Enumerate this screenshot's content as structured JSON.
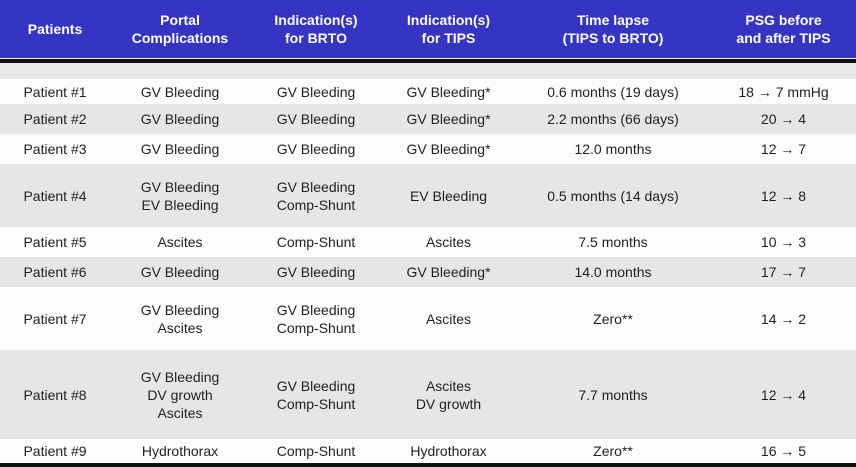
{
  "table": {
    "title": "BRTO/TIPS patient outcomes table",
    "headers": [
      "Patients",
      "Portal\nComplications",
      "Indication(s)\nfor BRTO",
      "Indication(s)\nfor TIPS",
      "Time lapse\n(TIPS to BRTO)",
      "PSG before\nand after TIPS"
    ],
    "rows": [
      {
        "patient": "Patient #1",
        "portal": "GV Bleeding",
        "brto": "GV Bleeding",
        "tips": "GV Bleeding*",
        "lapse": "0.6 months (19 days)",
        "psg": "18 → 7 mmHg"
      },
      {
        "patient": "Patient #2",
        "portal": "GV Bleeding",
        "brto": "GV Bleeding",
        "tips": "GV Bleeding*",
        "lapse": "2.2 months (66 days)",
        "psg": "20 →  4"
      },
      {
        "patient": "Patient #3",
        "portal": "GV Bleeding",
        "brto": "GV Bleeding",
        "tips": "GV Bleeding*",
        "lapse": "12.0 months",
        "psg": "12 →  7"
      },
      {
        "patient": "Patient #4",
        "portal": "GV Bleeding\nEV Bleeding",
        "brto": "GV Bleeding\nComp-Shunt",
        "tips": "EV Bleeding",
        "lapse": "0.5 months (14 days)",
        "psg": "12 → 8"
      },
      {
        "patient": "Patient #5",
        "portal": "Ascites",
        "brto": "Comp-Shunt",
        "tips": "Ascites",
        "lapse": "7.5 months",
        "psg": "10 → 3"
      },
      {
        "patient": "Patient #6",
        "portal": "GV Bleeding",
        "brto": "GV Bleeding",
        "tips": "GV Bleeding*",
        "lapse": "14.0 months",
        "psg": "17 → 7"
      },
      {
        "patient": "Patient #7",
        "portal": "GV Bleeding\nAscites",
        "brto": "GV Bleeding\nComp-Shunt",
        "tips": "Ascites",
        "lapse": "Zero**",
        "psg": "14 → 2"
      },
      {
        "patient": "Patient #8",
        "portal": "GV Bleeding\nDV growth\nAscites",
        "brto": "GV Bleeding\nComp-Shunt",
        "tips": "Ascites\nDV growth",
        "lapse": "7.7 months",
        "psg": "12 → 4"
      },
      {
        "patient": "Patient #9",
        "portal": "Hydrothorax",
        "brto": "Comp-Shunt",
        "tips": "Hydrothorax",
        "lapse": "Zero**",
        "psg": "16 → 5"
      }
    ]
  },
  "colors": {
    "header_bg": "#3535c4",
    "header_text": "#ffffff",
    "separator_bar": "#111111",
    "row_alt_bg": "#e6e6e6",
    "row_bg": "#fdfdfd",
    "body_text": "#1f1f1f"
  }
}
